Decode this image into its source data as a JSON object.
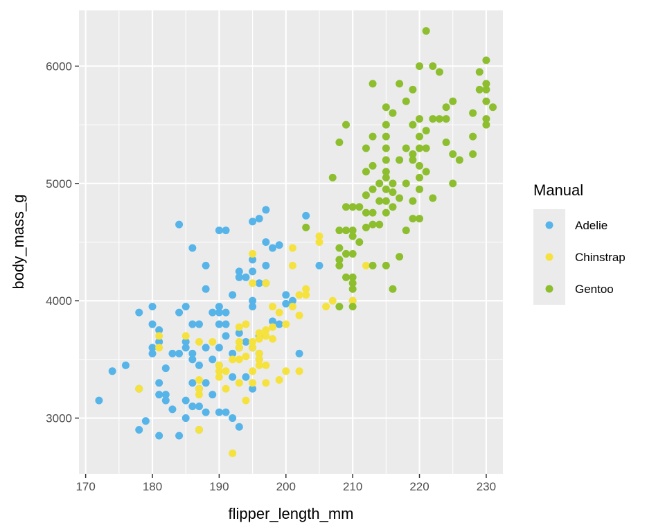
{
  "chart_data": {
    "type": "scatter",
    "title": "",
    "xlabel": "flipper_length_mm",
    "ylabel": "body_mass_g",
    "xlim": [
      169,
      232.5
    ],
    "ylim": [
      2525,
      6475
    ],
    "xticks": [
      170,
      180,
      190,
      200,
      210,
      220,
      230
    ],
    "yticks": [
      3000,
      4000,
      5000,
      6000
    ],
    "grid": true,
    "legend": {
      "title": "Manual",
      "position": "right"
    },
    "series": [
      {
        "name": "Adelie",
        "color": "#56B4E9",
        "points": [
          [
            172,
            3150
          ],
          [
            174,
            3400
          ],
          [
            176,
            3450
          ],
          [
            178,
            3900
          ],
          [
            178,
            3250
          ],
          [
            178,
            2900
          ],
          [
            179,
            2975
          ],
          [
            180,
            3950
          ],
          [
            180,
            3800
          ],
          [
            180,
            3600
          ],
          [
            180,
            3550
          ],
          [
            181,
            3750
          ],
          [
            181,
            3650
          ],
          [
            181,
            3300
          ],
          [
            181,
            3200
          ],
          [
            181,
            2850
          ],
          [
            182,
            3200
          ],
          [
            182,
            3150
          ],
          [
            182,
            3425
          ],
          [
            183,
            3075
          ],
          [
            183,
            3550
          ],
          [
            184,
            3550
          ],
          [
            184,
            3900
          ],
          [
            184,
            2850
          ],
          [
            184,
            4650
          ],
          [
            185,
            3950
          ],
          [
            185,
            3650
          ],
          [
            185,
            3600
          ],
          [
            185,
            3150
          ],
          [
            185,
            3000
          ],
          [
            186,
            4450
          ],
          [
            186,
            3800
          ],
          [
            186,
            3550
          ],
          [
            186,
            3500
          ],
          [
            186,
            3300
          ],
          [
            186,
            3100
          ],
          [
            187,
            3800
          ],
          [
            187,
            3450
          ],
          [
            187,
            3250
          ],
          [
            187,
            3100
          ],
          [
            187,
            2900
          ],
          [
            188,
            4300
          ],
          [
            188,
            4100
          ],
          [
            188,
            3600
          ],
          [
            188,
            3300
          ],
          [
            188,
            3050
          ],
          [
            189,
            3900
          ],
          [
            189,
            3500
          ],
          [
            189,
            3200
          ],
          [
            190,
            4600
          ],
          [
            190,
            3950
          ],
          [
            190,
            3900
          ],
          [
            190,
            3800
          ],
          [
            190,
            3600
          ],
          [
            190,
            3450
          ],
          [
            190,
            3050
          ],
          [
            191,
            4600
          ],
          [
            191,
            3900
          ],
          [
            191,
            3800
          ],
          [
            191,
            3700
          ],
          [
            191,
            3050
          ],
          [
            192,
            4050
          ],
          [
            192,
            3550
          ],
          [
            192,
            3350
          ],
          [
            192,
            3000
          ],
          [
            193,
            4250
          ],
          [
            193,
            4200
          ],
          [
            193,
            3725
          ],
          [
            193,
            3600
          ],
          [
            193,
            2925
          ],
          [
            194,
            4200
          ],
          [
            194,
            3650
          ],
          [
            194,
            3350
          ],
          [
            195,
            4675
          ],
          [
            195,
            4350
          ],
          [
            195,
            4250
          ],
          [
            195,
            4000
          ],
          [
            195,
            3950
          ],
          [
            195,
            3600
          ],
          [
            195,
            3250
          ],
          [
            196,
            4700
          ],
          [
            196,
            4150
          ],
          [
            196,
            3700
          ],
          [
            196,
            3550
          ],
          [
            196,
            3500
          ],
          [
            197,
            4775
          ],
          [
            197,
            4500
          ],
          [
            197,
            4300
          ],
          [
            197,
            4150
          ],
          [
            198,
            4450
          ],
          [
            198,
            3825
          ],
          [
            199,
            4475
          ],
          [
            199,
            3800
          ],
          [
            200,
            4050
          ],
          [
            200,
            3975
          ],
          [
            201,
            4000
          ],
          [
            202,
            3550
          ],
          [
            203,
            4725
          ],
          [
            205,
            4300
          ],
          [
            210,
            4000
          ]
        ]
      },
      {
        "name": "Chinstrap",
        "color": "#F6E23E",
        "points": [
          [
            178,
            3250
          ],
          [
            181,
            3700
          ],
          [
            181,
            3600
          ],
          [
            185,
            3700
          ],
          [
            187,
            3650
          ],
          [
            187,
            3325
          ],
          [
            187,
            3250
          ],
          [
            187,
            3200
          ],
          [
            187,
            2900
          ],
          [
            189,
            3650
          ],
          [
            190,
            3450
          ],
          [
            190,
            3400
          ],
          [
            190,
            3350
          ],
          [
            191,
            3400
          ],
          [
            191,
            3250
          ],
          [
            192,
            3500
          ],
          [
            192,
            2700
          ],
          [
            193,
            3775
          ],
          [
            193,
            3650
          ],
          [
            193,
            3600
          ],
          [
            193,
            3500
          ],
          [
            193,
            3300
          ],
          [
            194,
            3800
          ],
          [
            194,
            3525
          ],
          [
            194,
            3150
          ],
          [
            195,
            4400
          ],
          [
            195,
            4150
          ],
          [
            195,
            3650
          ],
          [
            195,
            3600
          ],
          [
            195,
            3400
          ],
          [
            195,
            3300
          ],
          [
            196,
            3725
          ],
          [
            196,
            3675
          ],
          [
            196,
            3550
          ],
          [
            196,
            3450
          ],
          [
            196,
            3500
          ],
          [
            197,
            4150
          ],
          [
            197,
            3750
          ],
          [
            197,
            3700
          ],
          [
            197,
            3450
          ],
          [
            197,
            3300
          ],
          [
            198,
            3950
          ],
          [
            198,
            3775
          ],
          [
            198,
            3675
          ],
          [
            199,
            3900
          ],
          [
            199,
            3325
          ],
          [
            200,
            3800
          ],
          [
            200,
            3400
          ],
          [
            201,
            4300
          ],
          [
            201,
            4450
          ],
          [
            201,
            3950
          ],
          [
            202,
            4050
          ],
          [
            202,
            3400
          ],
          [
            202,
            3875
          ],
          [
            203,
            4100
          ],
          [
            203,
            4050
          ],
          [
            205,
            4550
          ],
          [
            205,
            4500
          ],
          [
            206,
            3950
          ],
          [
            207,
            4000
          ],
          [
            210,
            4800
          ],
          [
            210,
            4000
          ],
          [
            212,
            4300
          ]
        ]
      },
      {
        "name": "Gentoo",
        "color": "#8CBE2E",
        "points": [
          [
            203,
            4625
          ],
          [
            207,
            5050
          ],
          [
            208,
            5350
          ],
          [
            208,
            4600
          ],
          [
            208,
            4450
          ],
          [
            208,
            4350
          ],
          [
            208,
            4300
          ],
          [
            208,
            3950
          ],
          [
            209,
            5500
          ],
          [
            209,
            4800
          ],
          [
            209,
            4600
          ],
          [
            209,
            4200
          ],
          [
            209,
            4400
          ],
          [
            210,
            4800
          ],
          [
            210,
            4600
          ],
          [
            210,
            4550
          ],
          [
            210,
            4400
          ],
          [
            210,
            4200
          ],
          [
            210,
            4150
          ],
          [
            210,
            4100
          ],
          [
            210,
            3950
          ],
          [
            211,
            4800
          ],
          [
            211,
            4500
          ],
          [
            212,
            5300
          ],
          [
            212,
            5100
          ],
          [
            212,
            4900
          ],
          [
            212,
            4750
          ],
          [
            212,
            4625
          ],
          [
            213,
            5850
          ],
          [
            213,
            5400
          ],
          [
            213,
            5150
          ],
          [
            213,
            4950
          ],
          [
            213,
            4750
          ],
          [
            213,
            4650
          ],
          [
            213,
            4300
          ],
          [
            214,
            5000
          ],
          [
            214,
            4850
          ],
          [
            214,
            4650
          ],
          [
            215,
            5650
          ],
          [
            215,
            5500
          ],
          [
            215,
            5400
          ],
          [
            215,
            5300
          ],
          [
            215,
            5200
          ],
          [
            215,
            5100
          ],
          [
            215,
            5050
          ],
          [
            215,
            4950
          ],
          [
            215,
            4850
          ],
          [
            215,
            4750
          ],
          [
            215,
            4300
          ],
          [
            216,
            5600
          ],
          [
            216,
            5000
          ],
          [
            216,
            4925
          ],
          [
            216,
            4800
          ],
          [
            216,
            4100
          ],
          [
            217,
            5850
          ],
          [
            217,
            5200
          ],
          [
            217,
            4875
          ],
          [
            217,
            4375
          ],
          [
            218,
            5700
          ],
          [
            218,
            5300
          ],
          [
            218,
            5000
          ],
          [
            218,
            4600
          ],
          [
            219,
            5800
          ],
          [
            219,
            5500
          ],
          [
            219,
            5250
          ],
          [
            219,
            5200
          ],
          [
            219,
            4850
          ],
          [
            219,
            4700
          ],
          [
            220,
            6000
          ],
          [
            220,
            5550
          ],
          [
            220,
            5400
          ],
          [
            220,
            5300
          ],
          [
            220,
            5150
          ],
          [
            220,
            5050
          ],
          [
            220,
            4950
          ],
          [
            220,
            4700
          ],
          [
            221,
            6300
          ],
          [
            221,
            5450
          ],
          [
            221,
            5300
          ],
          [
            221,
            5100
          ],
          [
            222,
            6000
          ],
          [
            222,
            5550
          ],
          [
            222,
            4875
          ],
          [
            223,
            5950
          ],
          [
            223,
            5550
          ],
          [
            224,
            5550
          ],
          [
            224,
            5350
          ],
          [
            224,
            5650
          ],
          [
            225,
            5700
          ],
          [
            225,
            5250
          ],
          [
            225,
            5000
          ],
          [
            226,
            5200
          ],
          [
            228,
            5600
          ],
          [
            228,
            5400
          ],
          [
            228,
            5250
          ],
          [
            229,
            5950
          ],
          [
            229,
            5800
          ],
          [
            230,
            6050
          ],
          [
            230,
            5850
          ],
          [
            230,
            5800
          ],
          [
            230,
            5700
          ],
          [
            230,
            5550
          ],
          [
            230,
            5500
          ],
          [
            231,
            5650
          ]
        ]
      }
    ]
  }
}
